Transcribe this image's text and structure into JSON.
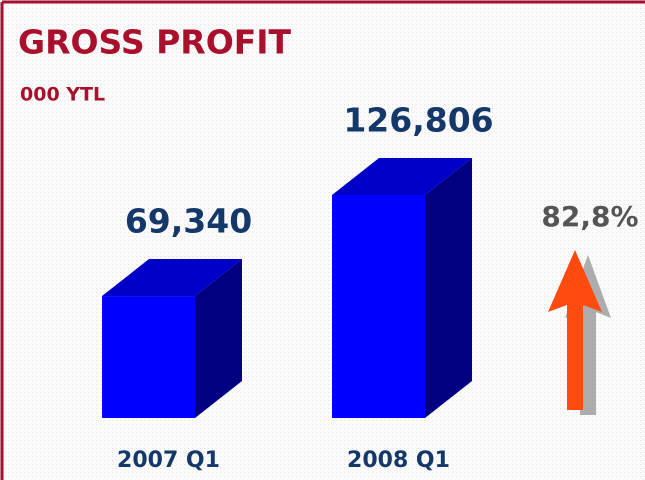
{
  "chart_data": {
    "type": "bar3d",
    "title": "GROSS PROFIT",
    "subtitle": "000 YTL",
    "categories": [
      "2007 Q1",
      "2008 Q1"
    ],
    "values": [
      69340,
      126806
    ],
    "value_labels": [
      "69,340",
      "126,806"
    ],
    "color": "#0000ff",
    "annotation": "82,8%"
  }
}
